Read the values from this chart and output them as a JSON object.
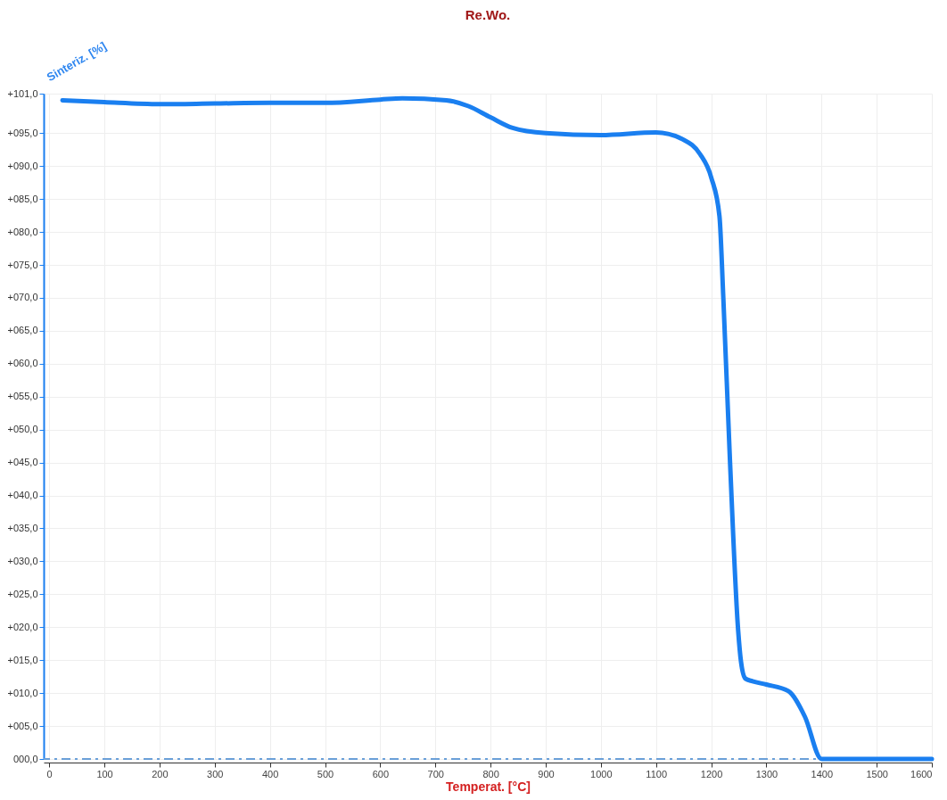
{
  "chart_data": {
    "type": "line",
    "title": "Re.Wo.",
    "xlabel": "Temperat. [°C]",
    "ylabel": "Sinteriz. [%]",
    "x": [
      24,
      100,
      200,
      300,
      400,
      500,
      600,
      640,
      720,
      760,
      800,
      840,
      900,
      1000,
      1100,
      1150,
      1180,
      1200,
      1215,
      1222,
      1234,
      1249,
      1254,
      1262,
      1275,
      1300,
      1340,
      1370,
      1400,
      1500,
      1600
    ],
    "series": [
      {
        "color": "#1a7ff0",
        "values": [
          100.0,
          99.7,
          99.4,
          99.5,
          99.6,
          99.6,
          100.1,
          100.3,
          100.0,
          99.1,
          97.4,
          95.8,
          95.0,
          94.7,
          95.1,
          94.0,
          91.8,
          88.3,
          82.4,
          70.0,
          45.4,
          19.4,
          14.8,
          12.2,
          11.8,
          11.3,
          10.3,
          6.4,
          0,
          0,
          0
        ]
      }
    ],
    "xlim": [
      -10,
      1600
    ],
    "xticks": [
      0,
      100,
      200,
      300,
      400,
      500,
      600,
      700,
      800,
      900,
      1000,
      1100,
      1200,
      1300,
      1400,
      1500,
      1600
    ],
    "ylim": [
      0,
      101
    ],
    "yticks": [
      {
        "value": 0,
        "label": "000,0"
      },
      {
        "value": 5,
        "label": "+005,0"
      },
      {
        "value": 10,
        "label": "+010,0"
      },
      {
        "value": 15,
        "label": "+015,0"
      },
      {
        "value": 20,
        "label": "+020,0"
      },
      {
        "value": 25,
        "label": "+025,0"
      },
      {
        "value": 30,
        "label": "+030,0"
      },
      {
        "value": 35,
        "label": "+035,0"
      },
      {
        "value": 40,
        "label": "+040,0"
      },
      {
        "value": 45,
        "label": "+045,0"
      },
      {
        "value": 50,
        "label": "+050,0"
      },
      {
        "value": 55,
        "label": "+055,0"
      },
      {
        "value": 60,
        "label": "+060,0"
      },
      {
        "value": 65,
        "label": "+065,0"
      },
      {
        "value": 70,
        "label": "+070,0"
      },
      {
        "value": 75,
        "label": "+075,0"
      },
      {
        "value": 80,
        "label": "+080,0"
      },
      {
        "value": 85,
        "label": "+085,0"
      },
      {
        "value": 90,
        "label": "+090,0"
      },
      {
        "value": 95,
        "label": "+095,0"
      },
      {
        "value": 101,
        "label": "+101,0"
      }
    ],
    "ref_lines": [
      {
        "axis": "y",
        "value": 0,
        "color": "#6a9fd8",
        "line_style": "dashed"
      }
    ],
    "grid": true,
    "line_style": "solid",
    "marker": "none"
  }
}
